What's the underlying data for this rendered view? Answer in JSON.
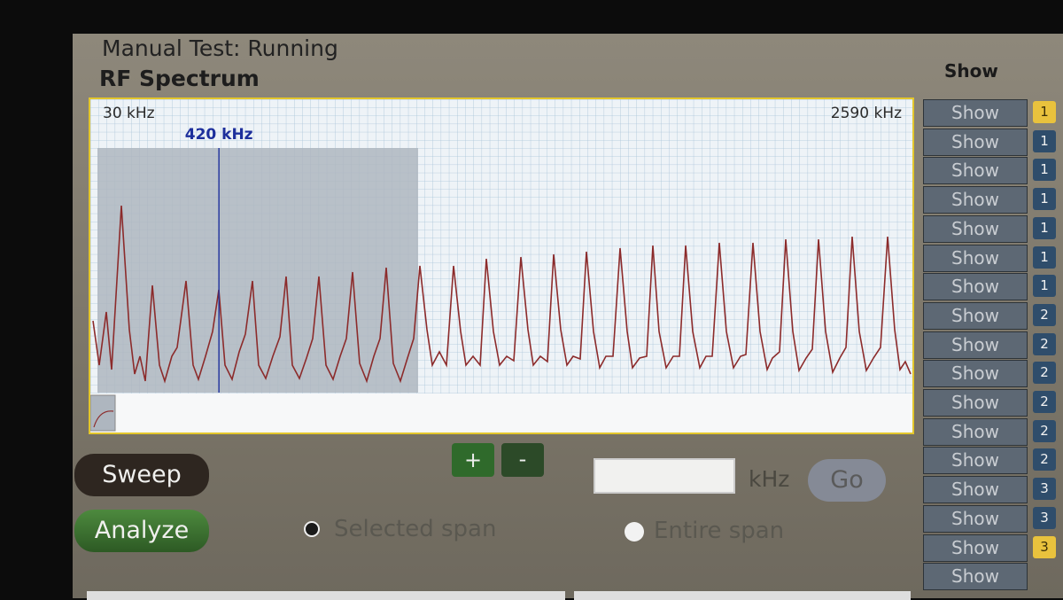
{
  "header": {
    "status": "Manual Test: Running",
    "title": "RF Spectrum"
  },
  "spectrum": {
    "start": {
      "value": 30,
      "label": "30 kHz"
    },
    "end": {
      "value": 2590,
      "label": "2590 kHz"
    },
    "marker": {
      "value": 420,
      "label": "420 kHz"
    }
  },
  "zoom": {
    "plus": "+",
    "minus": "-"
  },
  "controls": {
    "sweep": "Sweep",
    "analyze": "Analyze",
    "selected_span": "Selected span",
    "entire_span": "Entire span",
    "unit": "kHz",
    "go": "Go"
  },
  "show_panel": {
    "title": "Show",
    "rows": [
      {
        "button": "Show",
        "number": 1,
        "highlighted": true
      },
      {
        "button": "Show",
        "number": 1
      },
      {
        "button": "Show",
        "number": 1
      },
      {
        "button": "Show",
        "number": 1
      },
      {
        "button": "Show",
        "number": 1
      },
      {
        "button": "Show",
        "number": 1
      },
      {
        "button": "Show",
        "number": 1
      },
      {
        "button": "Show",
        "number": 2
      },
      {
        "button": "Show",
        "number": 2
      },
      {
        "button": "Show",
        "number": 2
      },
      {
        "button": "Show",
        "number": 2
      },
      {
        "button": "Show",
        "number": 2
      },
      {
        "button": "Show",
        "number": 2
      },
      {
        "button": "Show",
        "number": 3
      },
      {
        "button": "Show",
        "number": 3
      },
      {
        "button": "Show",
        "number": 3,
        "highlighted": true
      },
      {
        "button": "Show"
      }
    ]
  }
}
